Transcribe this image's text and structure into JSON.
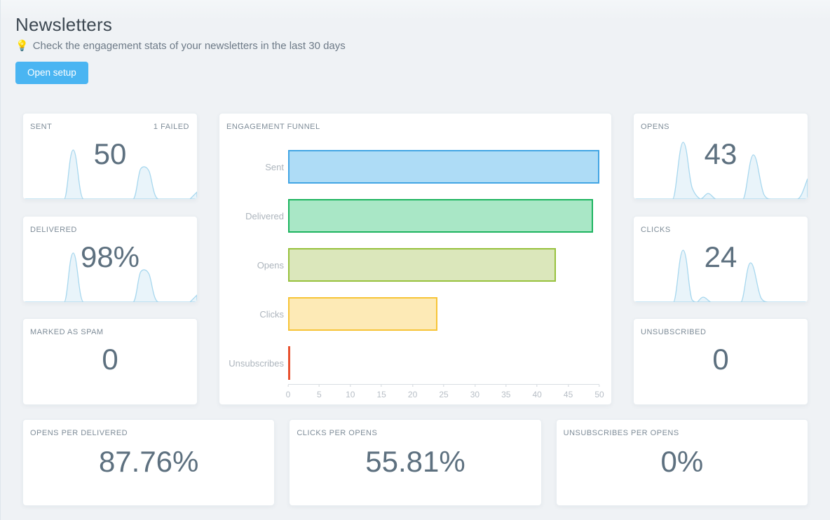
{
  "header": {
    "title": "Newsletters",
    "tip_icon": "💡",
    "subtitle": "Check the engagement stats of your newsletters in the last 30 days",
    "open_setup_label": "Open setup"
  },
  "cards": {
    "sent": {
      "label": "SENT",
      "badge": "1 FAILED",
      "value": "50"
    },
    "delivered": {
      "label": "DELIVERED",
      "value": "98%"
    },
    "spam": {
      "label": "MARKED AS SPAM",
      "value": "0"
    },
    "opens": {
      "label": "OPENS",
      "value": "43"
    },
    "clicks": {
      "label": "CLICKS",
      "value": "24"
    },
    "unsubscribed": {
      "label": "UNSUBSCRIBED",
      "value": "0"
    },
    "opens_per_delivered": {
      "label": "OPENS PER DELIVERED",
      "value": "87.76%"
    },
    "clicks_per_opens": {
      "label": "CLICKS PER OPENS",
      "value": "55.81%"
    },
    "unsubscribes_per_opens": {
      "label": "UNSUBSCRIBES PER OPENS",
      "value": "0%"
    }
  },
  "chart_data": {
    "type": "bar",
    "orientation": "horizontal",
    "title": "ENGAGEMENT FUNNEL",
    "categories": [
      "Sent",
      "Delivered",
      "Opens",
      "Clicks",
      "Unsubscribes"
    ],
    "values": [
      50,
      49,
      43,
      24,
      0
    ],
    "xlim": [
      0,
      50
    ],
    "xticks": [
      0,
      5,
      10,
      15,
      20,
      25,
      30,
      35,
      40,
      45,
      50
    ],
    "grid": false,
    "legend": "none",
    "bar_styles": [
      {
        "fill": "#aedcf6",
        "border": "#42a5e4"
      },
      {
        "fill": "#a9e7c6",
        "border": "#1cb45f"
      },
      {
        "fill": "#dbe7bb",
        "border": "#97c13d"
      },
      {
        "fill": "#fdeab6",
        "border": "#f7c437"
      },
      {
        "fill": "#e8502f",
        "border": "#e8502f"
      }
    ]
  },
  "colors": {
    "accent_button": "#4ab5f2",
    "stat_number": "#5d707f",
    "card_label": "#7e8c98",
    "sparkline_stroke": "#a7d7ee",
    "sparkline_fill": "#e9f4fa",
    "page_background": "#eff2f5"
  }
}
